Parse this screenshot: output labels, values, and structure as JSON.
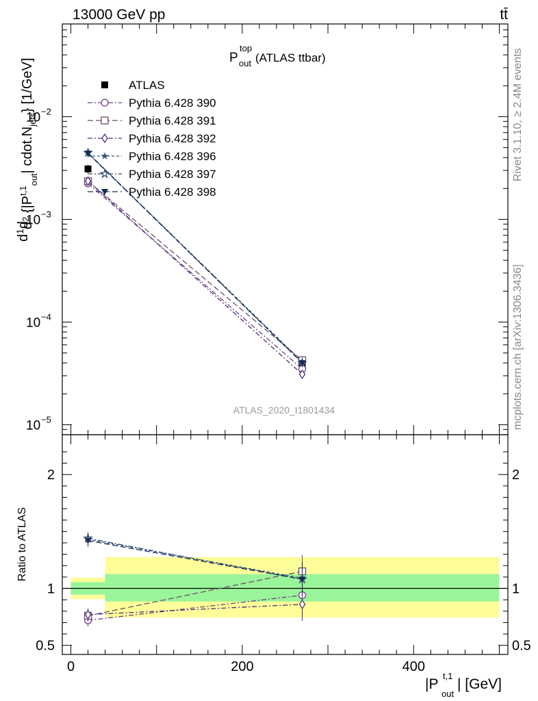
{
  "header": {
    "left": "13000 GeV pp",
    "right": "tt̄"
  },
  "side_labels": {
    "rivet": "Rivet 3.1.10, ≥ 2.4M events",
    "mcplots": "mcplots.cern.ch [arXiv:1306.3436]"
  },
  "watermark": "ATLAS_2020_I1801434",
  "chart_data": [
    {
      "type": "line",
      "panel": "main",
      "title": {
        "base": "P",
        "sup": "top",
        "sub": "out",
        "suffix": " (ATLAS ttbar)"
      },
      "ylabel": "dσ/d{|P_out^{t,1}| cdot.N_jets} [1/GeV]",
      "yscale": "log",
      "ylim": [
        8e-06,
        0.08
      ],
      "xlim": [
        -10,
        510
      ],
      "y_ticks": [
        {
          "value": 1e-05,
          "label": "10",
          "exp": "−5"
        },
        {
          "value": 0.0001,
          "label": "10",
          "exp": "−4"
        },
        {
          "value": 0.001,
          "label": "10",
          "exp": "−3"
        },
        {
          "value": 0.01,
          "label": "10",
          "exp": "−2"
        }
      ],
      "legend_position": "top-left",
      "x": [
        20,
        270
      ],
      "series": [
        {
          "name": "ATLAS",
          "color": "#000000",
          "marker": "square-filled",
          "dash": "",
          "values": [
            0.0031,
            3.7e-05
          ]
        },
        {
          "name": "Pythia 6.428 390",
          "color": "#6f3d82",
          "marker": "circle-open",
          "dash": "7,3,2,3",
          "values": [
            0.00224,
            3.5e-05
          ]
        },
        {
          "name": "Pythia 6.428 391",
          "color": "#6d4a6b",
          "marker": "square-open",
          "dash": "8,4",
          "values": [
            0.00235,
            4.25e-05
          ]
        },
        {
          "name": "Pythia 6.428 392",
          "color": "#4a2d7a",
          "marker": "diamond-open",
          "dash": "7,3,2,3",
          "values": [
            0.00236,
            3.1e-05
          ]
        },
        {
          "name": "Pythia 6.428 396",
          "color": "#2d5a78",
          "marker": "star-filled",
          "dash": "4,3",
          "values": [
            0.00443,
            4.1e-05
          ]
        },
        {
          "name": "Pythia 6.428 397",
          "color": "#2a4a6e",
          "marker": "star-open",
          "dash": "7,3,2,3",
          "values": [
            0.00445,
            4e-05
          ]
        },
        {
          "name": "Pythia 6.428 398",
          "color": "#1c2a55",
          "marker": "triangle-down-filled",
          "dash": "8,4",
          "values": [
            0.0044,
            4e-05
          ]
        }
      ]
    },
    {
      "type": "line",
      "panel": "ratio",
      "ylabel": "Ratio to ATLAS",
      "xlabel": "|P_out^{t,1}| [GeV]",
      "ylim": [
        0.42,
        2.35
      ],
      "xlim": [
        -10,
        510
      ],
      "x_ticks": [
        0,
        200,
        400
      ],
      "y_ticks": [
        0.5,
        1,
        2
      ],
      "reference_line": 1,
      "bands": [
        {
          "x0": 0,
          "x1": 40,
          "stat_lo": 0.945,
          "stat_hi": 1.055,
          "total_lo": 0.905,
          "total_hi": 1.095
        },
        {
          "x0": 40,
          "x1": 500,
          "stat_lo": 0.885,
          "stat_hi": 1.125,
          "total_lo": 0.745,
          "total_hi": 1.275
        }
      ],
      "band_colors": {
        "stat": "#99f599",
        "total": "#fdfd99"
      },
      "x": [
        20,
        270
      ],
      "series": [
        {
          "name": "Pythia 6.428 390",
          "values": [
            0.72,
            0.94
          ]
        },
        {
          "name": "Pythia 6.428 391",
          "values": [
            0.76,
            1.15
          ]
        },
        {
          "name": "Pythia 6.428 392",
          "values": [
            0.77,
            0.86
          ]
        },
        {
          "name": "Pythia 6.428 396",
          "values": [
            1.43,
            1.09
          ]
        },
        {
          "name": "Pythia 6.428 397",
          "values": [
            1.44,
            1.08
          ]
        },
        {
          "name": "Pythia 6.428 398",
          "values": [
            1.42,
            1.08
          ]
        }
      ]
    }
  ],
  "axis_text": {
    "x_base": "|P",
    "x_sup": "t,1",
    "x_sub": "out",
    "x_suffix": "| [GeV]",
    "ratio_y": "Ratio to ATLAS"
  }
}
